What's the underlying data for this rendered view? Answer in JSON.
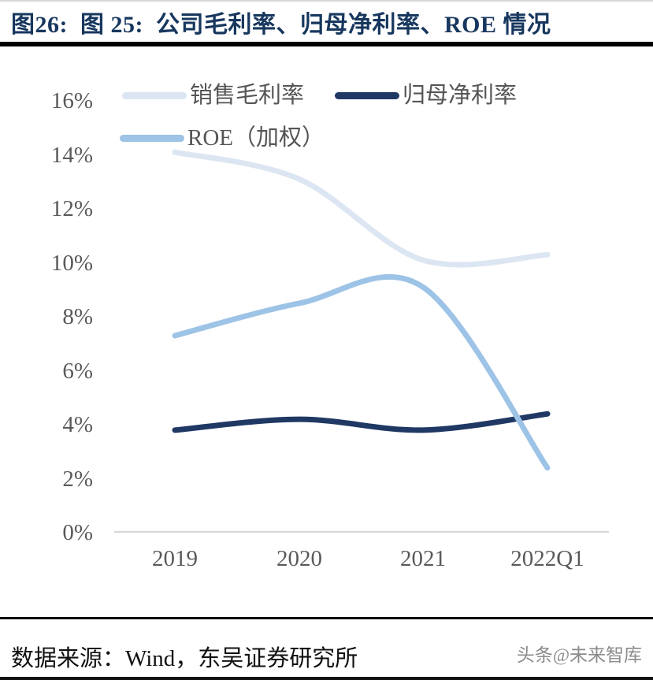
{
  "page": {
    "title": "图26:  图 25:  公司毛利率、归母净利率、ROE 情况",
    "source_note": "数据来源：Wind，东吴证券研究所",
    "watermark": "头条@未来智库"
  },
  "chart_data": {
    "type": "line",
    "title": "公司毛利率、归母净利率、ROE 情况",
    "categories": [
      "2019",
      "2020",
      "2021",
      "2022Q1"
    ],
    "series": [
      {
        "name": "销售毛利率",
        "color": "#dce6f2",
        "values": [
          14.1,
          13.1,
          10.1,
          10.3
        ]
      },
      {
        "name": "归母净利率",
        "color": "#1f3864",
        "values": [
          3.8,
          4.2,
          3.8,
          4.4
        ]
      },
      {
        "name": "ROE（加权）",
        "color": "#9dc3e6",
        "values": [
          7.3,
          8.5,
          9.1,
          2.4
        ]
      }
    ],
    "yticks": [
      "16%",
      "14%",
      "12%",
      "10%",
      "8%",
      "6%",
      "4%",
      "2%",
      "0%"
    ],
    "ylim": [
      0,
      16
    ],
    "ytick_step": 2,
    "grid": false,
    "smooth": true,
    "legend_position": "top-left",
    "axis_color": "#d9d9d9",
    "label_color": "#595959"
  }
}
